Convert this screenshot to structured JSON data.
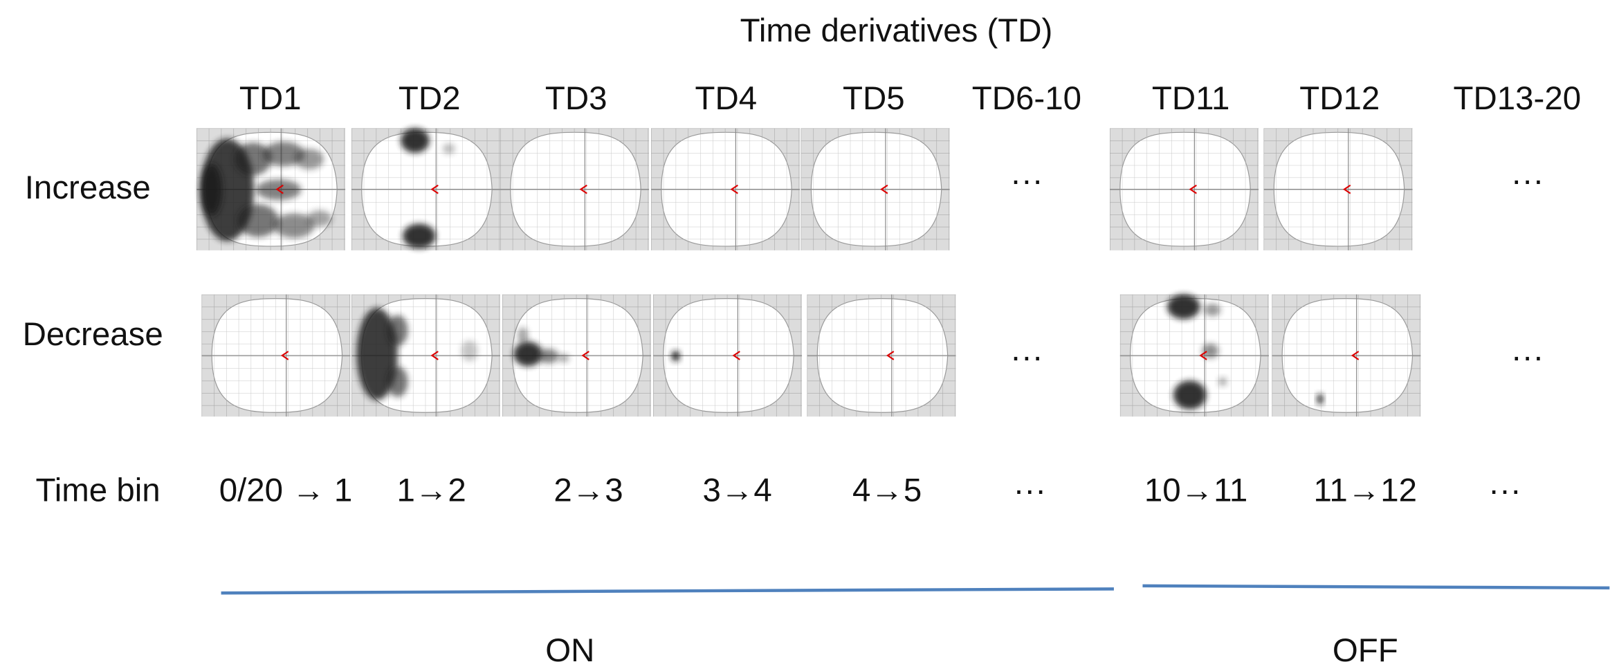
{
  "title": "Time derivatives (TD)",
  "columns": [
    "TD1",
    "TD2",
    "TD3",
    "TD4",
    "TD5",
    "TD6-10",
    "TD11",
    "TD12",
    "TD13-20"
  ],
  "rows": [
    {
      "label": "Increase",
      "placeholders": [
        "···",
        "···"
      ]
    },
    {
      "label": "Decrease",
      "placeholders": [
        "···",
        "···"
      ]
    }
  ],
  "time_bin": {
    "label": "Time bin",
    "bins": [
      "0/20 → 1",
      "1→2",
      "2→3",
      "3→4",
      "4→5",
      "···",
      "10→11",
      "11→12",
      "···"
    ]
  },
  "groups": [
    {
      "label": "ON"
    },
    {
      "label": "OFF"
    }
  ]
}
